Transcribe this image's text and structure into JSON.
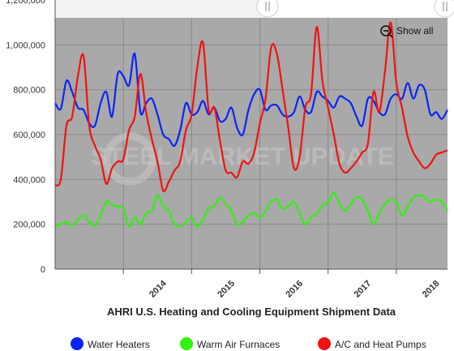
{
  "chart_data": {
    "type": "line",
    "title": "AHRI U.S. Heating and Cooling Equipment Shipment Data",
    "ylim": [
      0,
      1200000
    ],
    "y_ticks": [
      "0",
      "200,000",
      "400,000",
      "600,000",
      "800,000",
      "1,000,000",
      "1,200,000"
    ],
    "x_ticks": [
      "2014",
      "2015",
      "2016",
      "2017",
      "2018"
    ],
    "x_range_months": [
      "Jan 2013",
      "Oct 2018"
    ],
    "grid": true,
    "legend_position": "bottom",
    "series": [
      {
        "name": "Water Heaters",
        "color": "#0b24f5",
        "x": [
          "2013-01",
          "2013-02",
          "2013-03",
          "2013-04",
          "2013-05",
          "2013-06",
          "2013-07",
          "2013-08",
          "2013-09",
          "2013-10",
          "2013-11",
          "2013-12",
          "2014-01",
          "2014-02",
          "2014-03",
          "2014-04",
          "2014-05",
          "2014-06",
          "2014-07",
          "2014-08",
          "2014-09",
          "2014-10",
          "2014-11",
          "2014-12",
          "2015-01",
          "2015-02",
          "2015-03",
          "2015-04",
          "2015-05",
          "2015-06",
          "2015-07",
          "2015-08",
          "2015-09",
          "2015-10",
          "2015-11",
          "2015-12",
          "2016-01",
          "2016-02",
          "2016-03",
          "2016-04",
          "2016-05",
          "2016-06",
          "2016-07",
          "2016-08",
          "2016-09",
          "2016-10",
          "2016-11",
          "2016-12",
          "2017-01",
          "2017-02",
          "2017-03",
          "2017-04",
          "2017-05",
          "2017-06",
          "2017-07",
          "2017-08",
          "2017-09",
          "2017-10",
          "2017-11",
          "2017-12",
          "2018-01",
          "2018-02",
          "2018-03",
          "2018-04",
          "2018-05",
          "2018-06",
          "2018-07",
          "2018-08",
          "2018-09",
          "2018-10"
        ],
        "values": [
          740000,
          715000,
          840000,
          790000,
          720000,
          710000,
          650000,
          640000,
          740000,
          790000,
          680000,
          870000,
          860000,
          820000,
          960000,
          700000,
          740000,
          760000,
          690000,
          600000,
          580000,
          550000,
          620000,
          740000,
          690000,
          700000,
          750000,
          690000,
          720000,
          660000,
          670000,
          720000,
          630000,
          600000,
          710000,
          780000,
          800000,
          710000,
          730000,
          730000,
          690000,
          680000,
          700000,
          770000,
          710000,
          700000,
          790000,
          770000,
          750000,
          720000,
          770000,
          760000,
          740000,
          680000,
          640000,
          760000,
          750000,
          700000,
          690000,
          760000,
          780000,
          760000,
          830000,
          760000,
          820000,
          800000,
          690000,
          700000,
          670000,
          710000
        ]
      },
      {
        "name": "Warm Air Furnaces",
        "color": "#31f110",
        "x": [
          "2013-01",
          "2013-02",
          "2013-03",
          "2013-04",
          "2013-05",
          "2013-06",
          "2013-07",
          "2013-08",
          "2013-09",
          "2013-10",
          "2013-11",
          "2013-12",
          "2014-01",
          "2014-02",
          "2014-03",
          "2014-04",
          "2014-05",
          "2014-06",
          "2014-07",
          "2014-08",
          "2014-09",
          "2014-10",
          "2014-11",
          "2014-12",
          "2015-01",
          "2015-02",
          "2015-03",
          "2015-04",
          "2015-05",
          "2015-06",
          "2015-07",
          "2015-08",
          "2015-09",
          "2015-10",
          "2015-11",
          "2015-12",
          "2016-01",
          "2016-02",
          "2016-03",
          "2016-04",
          "2016-05",
          "2016-06",
          "2016-07",
          "2016-08",
          "2016-09",
          "2016-10",
          "2016-11",
          "2016-12",
          "2017-01",
          "2017-02",
          "2017-03",
          "2017-04",
          "2017-05",
          "2017-06",
          "2017-07",
          "2017-08",
          "2017-09",
          "2017-10",
          "2017-11",
          "2017-12",
          "2018-01",
          "2018-02",
          "2018-03",
          "2018-04",
          "2018-05",
          "2018-06",
          "2018-07",
          "2018-08",
          "2018-09",
          "2018-10"
        ],
        "values": [
          195000,
          200000,
          210000,
          195000,
          220000,
          240000,
          210000,
          195000,
          240000,
          300000,
          285000,
          280000,
          270000,
          190000,
          230000,
          200000,
          250000,
          260000,
          330000,
          280000,
          260000,
          200000,
          190000,
          210000,
          230000,
          190000,
          220000,
          270000,
          280000,
          320000,
          290000,
          260000,
          200000,
          210000,
          240000,
          250000,
          230000,
          260000,
          300000,
          310000,
          270000,
          280000,
          300000,
          250000,
          200000,
          230000,
          250000,
          280000,
          300000,
          340000,
          290000,
          260000,
          290000,
          320000,
          310000,
          260000,
          200000,
          250000,
          290000,
          310000,
          300000,
          240000,
          280000,
          320000,
          330000,
          320000,
          300000,
          310000,
          300000,
          260000
        ]
      },
      {
        "name": "A/C and Heat Pumps",
        "color": "#f21212",
        "x": [
          "2013-01",
          "2013-02",
          "2013-03",
          "2013-04",
          "2013-05",
          "2013-06",
          "2013-07",
          "2013-08",
          "2013-09",
          "2013-10",
          "2013-11",
          "2013-12",
          "2014-01",
          "2014-02",
          "2014-03",
          "2014-04",
          "2014-05",
          "2014-06",
          "2014-07",
          "2014-08",
          "2014-09",
          "2014-10",
          "2014-11",
          "2014-12",
          "2015-01",
          "2015-02",
          "2015-03",
          "2015-04",
          "2015-05",
          "2015-06",
          "2015-07",
          "2015-08",
          "2015-09",
          "2015-10",
          "2015-11",
          "2015-12",
          "2016-01",
          "2016-02",
          "2016-03",
          "2016-04",
          "2016-05",
          "2016-06",
          "2016-07",
          "2016-08",
          "2016-09",
          "2016-10",
          "2016-11",
          "2016-12",
          "2017-01",
          "2017-02",
          "2017-03",
          "2017-04",
          "2017-05",
          "2017-06",
          "2017-07",
          "2017-08",
          "2017-09",
          "2017-10",
          "2017-11",
          "2017-12",
          "2018-01",
          "2018-02",
          "2018-03",
          "2018-04",
          "2018-05",
          "2018-06",
          "2018-07",
          "2018-08",
          "2018-09",
          "2018-10"
        ],
        "values": [
          375000,
          400000,
          640000,
          680000,
          860000,
          950000,
          640000,
          550000,
          490000,
          380000,
          450000,
          480000,
          490000,
          620000,
          680000,
          870000,
          700000,
          580000,
          480000,
          350000,
          390000,
          440000,
          480000,
          620000,
          690000,
          900000,
          1010000,
          710000,
          720000,
          570000,
          440000,
          430000,
          410000,
          480000,
          470000,
          520000,
          650000,
          760000,
          990000,
          960000,
          800000,
          630000,
          450000,
          500000,
          720000,
          780000,
          1080000,
          840000,
          720000,
          600000,
          470000,
          430000,
          450000,
          480000,
          520000,
          560000,
          790000,
          700000,
          880000,
          1100000,
          830000,
          720000,
          590000,
          520000,
          480000,
          450000,
          470000,
          510000,
          520000,
          530000
        ]
      }
    ]
  },
  "toolbar": {
    "show_all_label": "Show all"
  },
  "watermark": {
    "text": "STEEL MARKET UPDATE"
  },
  "colors": {
    "plot_background": "#a9a9a9",
    "grid": "#8a8a8a"
  }
}
